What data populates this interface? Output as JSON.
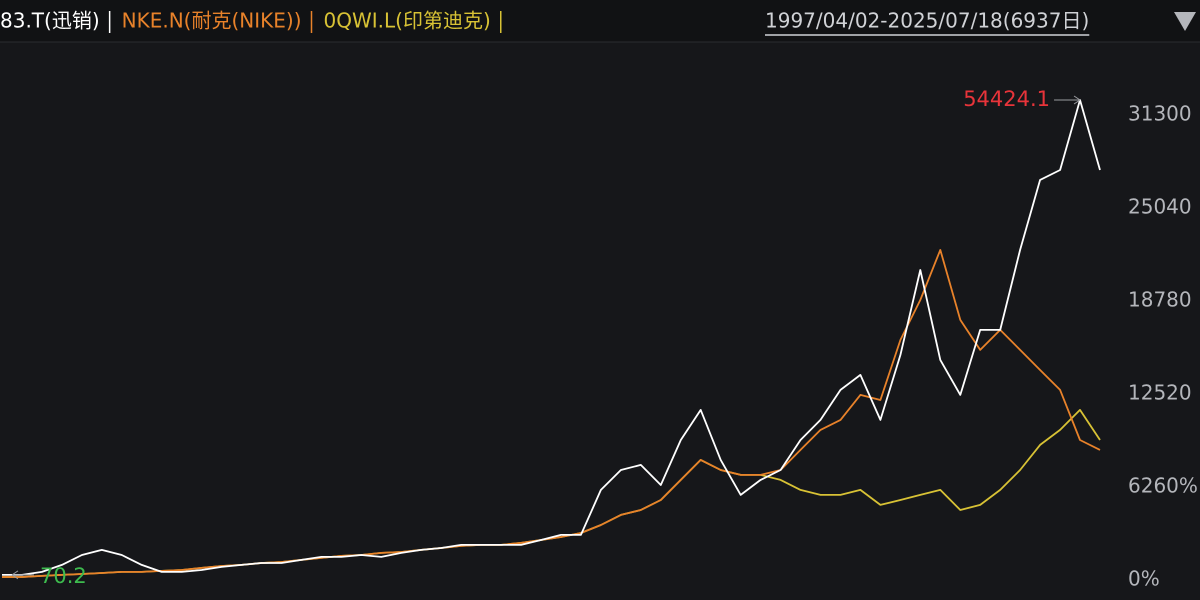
{
  "chart_data": {
    "type": "line",
    "range": "1997/04/02-2025/07/18(6937日)",
    "max_label": "54424.1",
    "min_label": "70.2",
    "ylim": [
      -1350,
      36000
    ],
    "yticks": [
      {
        "value": 0,
        "label": "0%"
      },
      {
        "value": 6260,
        "label": "6260%"
      },
      12520,
      18780,
      25040,
      31300
    ],
    "grid": false,
    "series": [
      {
        "name": "83.T(迅销)",
        "color": "#ffffff",
        "values": [
          340,
          340,
          540,
          1010,
          1680,
          2020,
          1680,
          1010,
          540,
          540,
          670,
          880,
          1010,
          1140,
          1140,
          1350,
          1550,
          1550,
          1680,
          1550,
          1820,
          2020,
          2150,
          2360,
          2360,
          2360,
          2360,
          2690,
          3030,
          3030,
          6060,
          7400,
          7740,
          6390,
          9420,
          11440,
          8080,
          5720,
          6730,
          7400,
          9420,
          10770,
          12790,
          13800,
          10770,
          15140,
          20860,
          14810,
          12450,
          16830,
          16830,
          22210,
          26920,
          27590,
          32300,
          27590
        ]
      },
      {
        "name": "NKE.N(耐克(NIKE))",
        "color": "#e8822a",
        "values": [
          200,
          200,
          270,
          340,
          400,
          470,
          540,
          540,
          610,
          670,
          810,
          940,
          1010,
          1140,
          1210,
          1350,
          1480,
          1620,
          1680,
          1820,
          1880,
          2020,
          2150,
          2290,
          2360,
          2360,
          2490,
          2690,
          2890,
          3160,
          3700,
          4380,
          4710,
          5380,
          6730,
          8080,
          7400,
          7070,
          7070,
          7400,
          8750,
          10100,
          10770,
          12450,
          12110,
          16150,
          18840,
          22210,
          17500,
          15480,
          16830,
          15480,
          14130,
          12790,
          9420,
          8750
        ]
      },
      {
        "name": "0QWI.L(印第迪克)",
        "color": "#d8c235",
        "values": [
          200,
          200,
          270,
          340,
          400,
          470,
          540,
          540,
          610,
          670,
          810,
          940,
          1010,
          1140,
          1210,
          1350,
          1480,
          1620,
          1680,
          1820,
          1880,
          2020,
          2150,
          2290,
          2360,
          2360,
          2490,
          2690,
          2890,
          3160,
          3700,
          4380,
          4710,
          5380,
          6730,
          8080,
          7400,
          7070,
          7070,
          6730,
          6060,
          5720,
          5720,
          6060,
          5050,
          5380,
          5720,
          6060,
          4710,
          5050,
          6060,
          7400,
          9090,
          10100,
          11440,
          9420
        ]
      }
    ]
  }
}
